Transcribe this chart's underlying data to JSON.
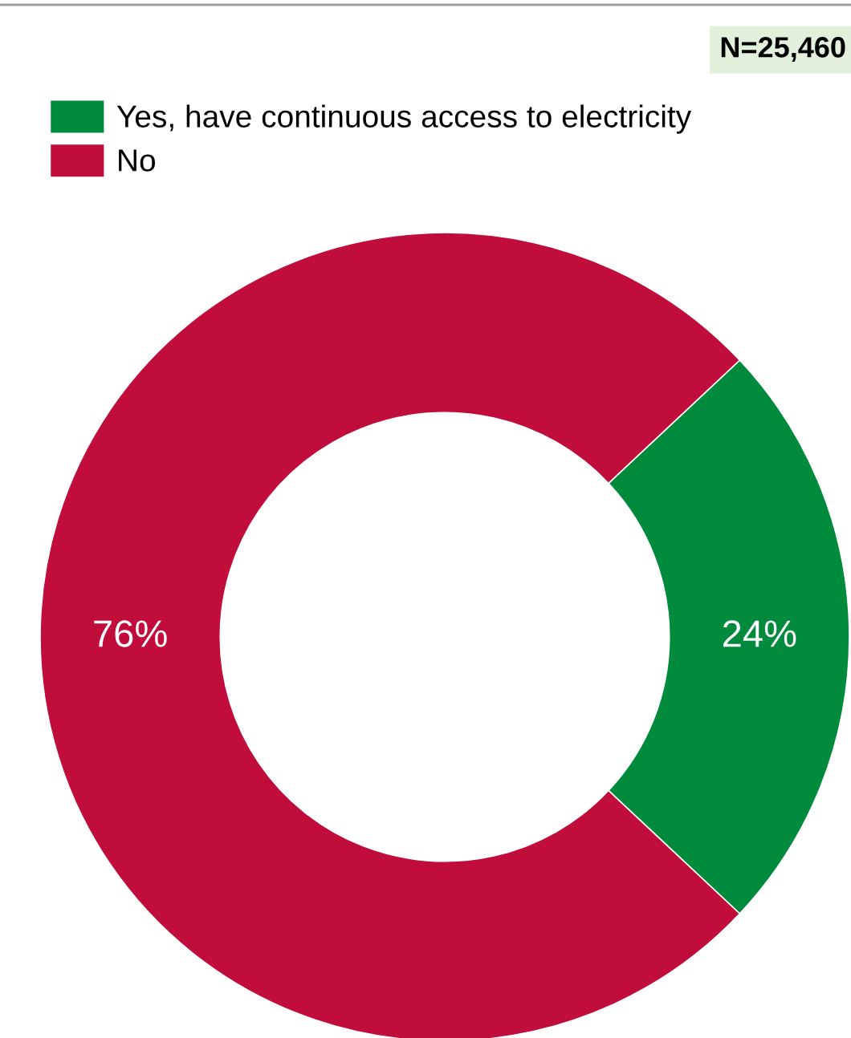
{
  "chart_data": {
    "type": "donut",
    "categories": [
      "Yes, have continuous access to electricity",
      "No"
    ],
    "values": [
      24,
      76
    ],
    "colors": [
      "#008a3b",
      "#c10d3c"
    ],
    "value_labels": [
      "24%",
      "76%"
    ],
    "annotations": [
      "N=25,460"
    ],
    "legend": "top left"
  }
}
